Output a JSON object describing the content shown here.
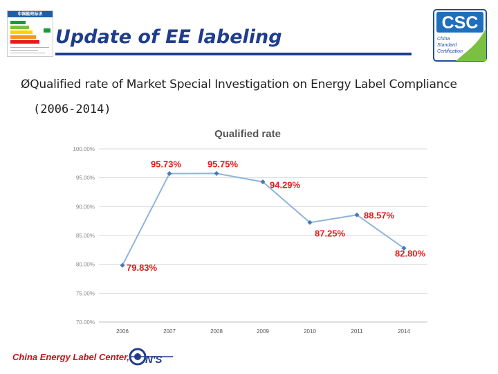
{
  "slide": {
    "title": "Update of EE labeling",
    "bullet_marker": "Ø",
    "bullet_text": "Qualified rate of Market Special Investigation on Energy Label Compliance",
    "bullet_years": "(2006-2014)",
    "footer": "China Energy Label Center,"
  },
  "logos": {
    "csc_text": "CSC",
    "csc_subtext": [
      "China",
      "Standard",
      "Certification"
    ],
    "cnis_text": "N'S",
    "energy_label_header": "中国能效标识"
  },
  "colors": {
    "title": "#1f3d8c",
    "rule": "#1e3c8f",
    "series_line": "#8fb4dc",
    "marker": "#4a7ab5",
    "data_label": "#e8191c",
    "footer": "#c0141b"
  },
  "chart_data": {
    "type": "line",
    "title": "Qualified rate",
    "categories": [
      "2006",
      "2007",
      "2008",
      "2009",
      "2010",
      "2011",
      "2014"
    ],
    "values": [
      79.83,
      95.73,
      95.75,
      94.29,
      87.25,
      88.57,
      82.8
    ],
    "value_labels": [
      "79.83%",
      "95.73%",
      "95.75%",
      "94.29%",
      "87.25%",
      "88.57%",
      "82.80%"
    ],
    "y_ticks": [
      "100.00%",
      "95.00%",
      "90.00%",
      "85.00%",
      "80.00%",
      "75.00%",
      "70.00%"
    ],
    "y_tick_values": [
      100,
      95,
      90,
      85,
      80,
      75,
      70
    ],
    "ylim": [
      70,
      100
    ],
    "grid": true,
    "legend": "none"
  }
}
